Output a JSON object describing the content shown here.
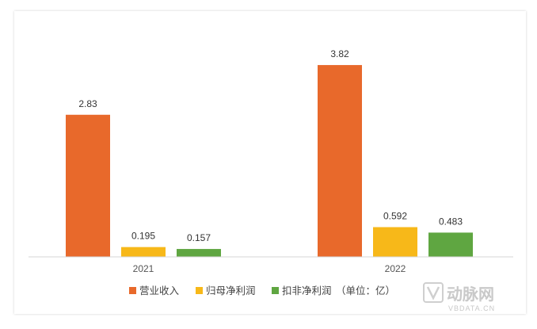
{
  "chart_data": {
    "type": "bar",
    "categories": [
      "2021",
      "2022"
    ],
    "series": [
      {
        "name": "营业收入",
        "values": [
          2.83,
          3.82
        ],
        "color": "#E8692B"
      },
      {
        "name": "归母净利润",
        "values": [
          0.195,
          0.592
        ],
        "color": "#F7B819"
      },
      {
        "name": "扣非净利润",
        "values": [
          0.157,
          0.483
        ],
        "color": "#5FA641"
      }
    ],
    "data_labels": [
      [
        "2.83",
        "3.82"
      ],
      [
        "0.195",
        "0.592"
      ],
      [
        "0.157",
        "0.483"
      ]
    ],
    "unit_note": "（单位：亿）",
    "ylim": [
      0,
      4.5
    ],
    "legend_position": "bottom",
    "grid": false
  },
  "watermark": {
    "logo_text": "动脉网",
    "sub_text": "VBDATA.CN"
  }
}
